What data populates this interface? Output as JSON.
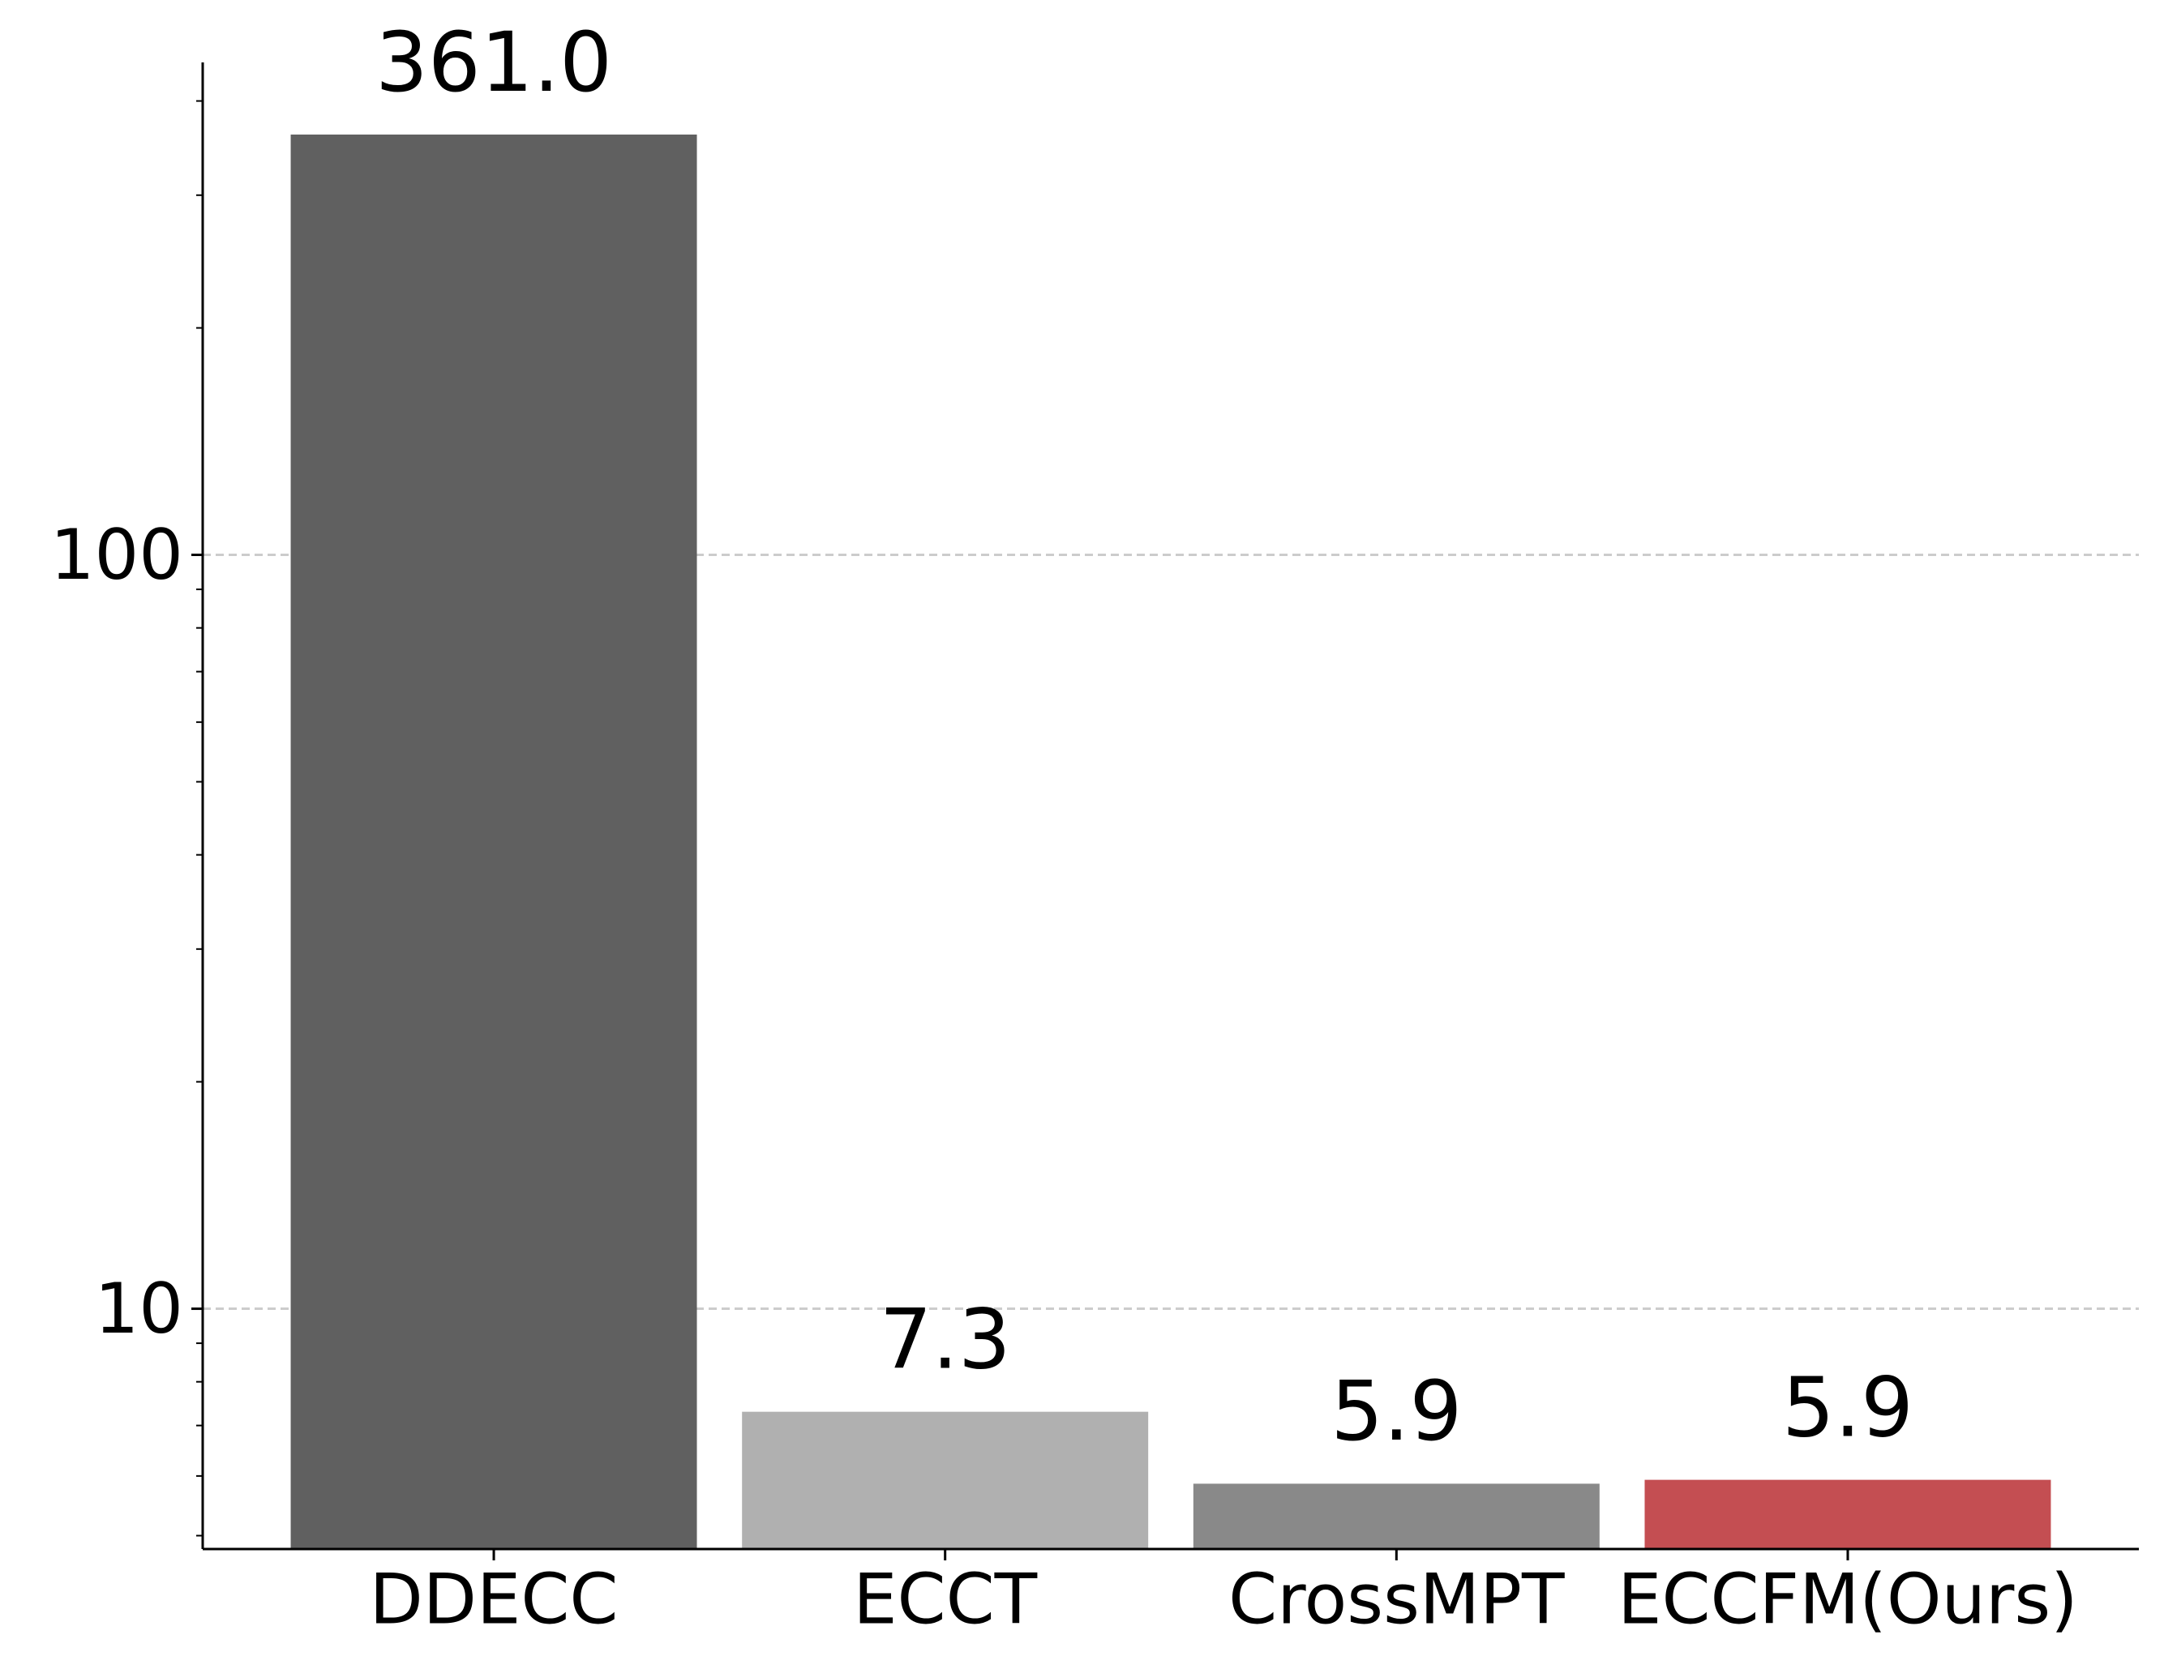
{
  "chart_data": {
    "type": "bar",
    "categories": [
      "DDECC",
      "ECCT",
      "CrossMPT",
      "ECCFM(Ours)"
    ],
    "values": [
      361.0,
      7.3,
      5.86,
      5.93
    ],
    "value_labels": [
      "361.0",
      "7.3",
      "5.9",
      "5.9"
    ],
    "colors": [
      "#606060",
      "#b0b0b0",
      "#898989",
      "#c44e52"
    ],
    "log_y": true,
    "ylim": [
      4.8,
      450
    ],
    "yticks": [
      10,
      100
    ],
    "minor_yticks": [
      5,
      6,
      7,
      8,
      9,
      20,
      30,
      40,
      50,
      60,
      70,
      80,
      90,
      200,
      300,
      400
    ],
    "grid": true
  }
}
